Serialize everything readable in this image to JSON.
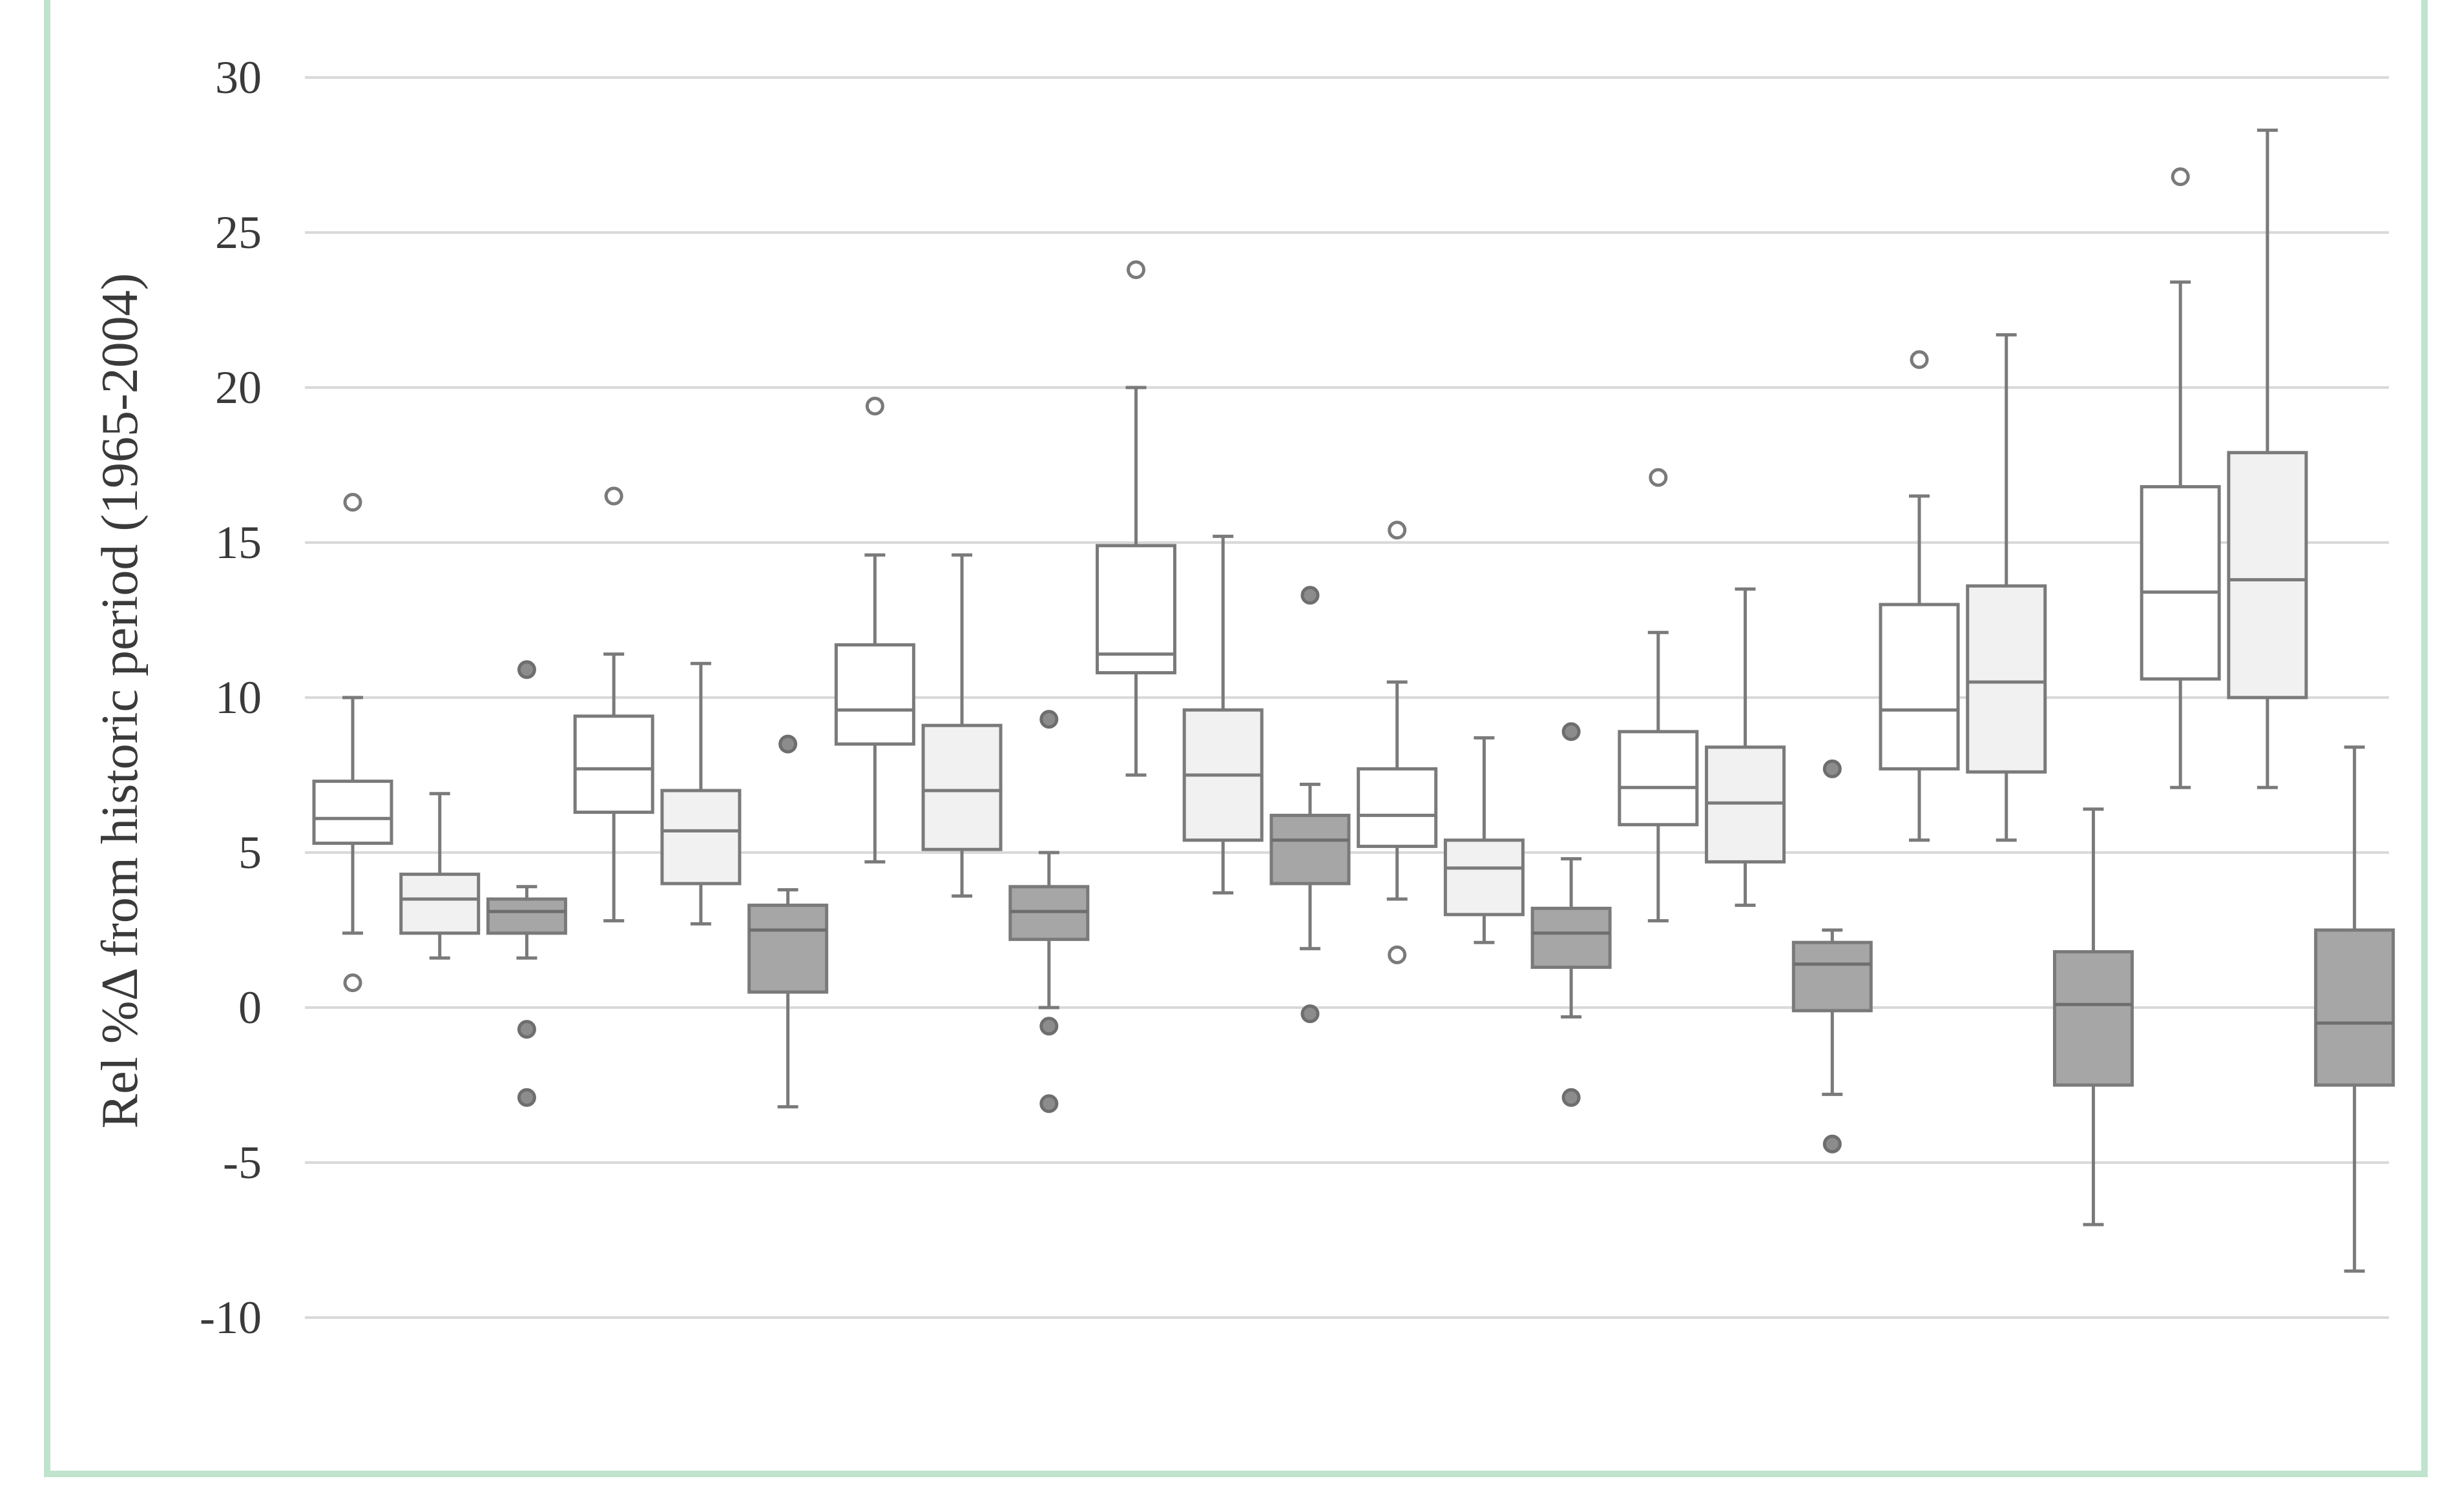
{
  "chart_data": {
    "type": "boxplot",
    "ylabel": "Rel %Δ from historic period (1965-2004)",
    "ylim": [
      -10,
      30
    ],
    "yticks": [
      30,
      25,
      20,
      15,
      10,
      5,
      0,
      -5,
      -10
    ],
    "grid": true,
    "colors": {
      "white": "#ffffff",
      "light": "#f1f1f1",
      "dark": "#a6a6a6",
      "stroke": "#7a7a7a",
      "grid": "#d9d9d9",
      "frame": "#bfe3cc"
    },
    "boxes": [
      {
        "fill": "white",
        "whisker_low": 2.4,
        "q1": 5.3,
        "median": 6.1,
        "q3": 7.3,
        "whisker_high": 10.0,
        "outliers": [
          16.3,
          0.8
        ]
      },
      {
        "fill": "light",
        "whisker_low": 1.6,
        "q1": 2.4,
        "median": 3.5,
        "q3": 4.3,
        "whisker_high": 6.9,
        "outliers": []
      },
      {
        "fill": "dark",
        "whisker_low": 1.6,
        "q1": 2.4,
        "median": 3.1,
        "q3": 3.5,
        "whisker_high": 3.9,
        "outliers": [
          10.9,
          -0.7,
          -2.9
        ]
      },
      {
        "fill": "white",
        "whisker_low": 2.8,
        "q1": 6.3,
        "median": 7.7,
        "q3": 9.4,
        "whisker_high": 11.4,
        "outliers": [
          16.5
        ]
      },
      {
        "fill": "light",
        "whisker_low": 2.7,
        "q1": 4.0,
        "median": 5.7,
        "q3": 7.0,
        "whisker_high": 11.1,
        "outliers": []
      },
      {
        "fill": "dark",
        "whisker_low": -3.2,
        "q1": 0.5,
        "median": 2.5,
        "q3": 3.3,
        "whisker_high": 3.8,
        "outliers": [
          8.5
        ]
      },
      {
        "fill": "white",
        "whisker_low": 4.7,
        "q1": 8.5,
        "median": 9.6,
        "q3": 11.7,
        "whisker_high": 14.6,
        "outliers": [
          19.4
        ]
      },
      {
        "fill": "light",
        "whisker_low": 3.6,
        "q1": 5.1,
        "median": 7.0,
        "q3": 9.1,
        "whisker_high": 14.6,
        "outliers": []
      },
      {
        "fill": "dark",
        "whisker_low": 0.0,
        "q1": 2.2,
        "median": 3.1,
        "q3": 3.9,
        "whisker_high": 5.0,
        "outliers": [
          9.3,
          -0.6,
          -3.1
        ]
      },
      {
        "fill": "white",
        "whisker_low": 7.5,
        "q1": 10.8,
        "median": 11.4,
        "q3": 14.9,
        "whisker_high": 20.0,
        "outliers": [
          23.8
        ]
      },
      {
        "fill": "light",
        "whisker_low": 3.7,
        "q1": 5.4,
        "median": 7.5,
        "q3": 9.6,
        "whisker_high": 15.2,
        "outliers": []
      },
      {
        "fill": "dark",
        "whisker_low": 1.9,
        "q1": 4.0,
        "median": 5.4,
        "q3": 6.2,
        "whisker_high": 7.2,
        "outliers": [
          13.3,
          -0.2
        ]
      },
      {
        "fill": "white",
        "whisker_low": 3.5,
        "q1": 5.2,
        "median": 6.2,
        "q3": 7.7,
        "whisker_high": 10.5,
        "outliers": [
          15.4,
          1.7
        ]
      },
      {
        "fill": "light",
        "whisker_low": 2.1,
        "q1": 3.0,
        "median": 4.5,
        "q3": 5.4,
        "whisker_high": 8.7,
        "outliers": []
      },
      {
        "fill": "dark",
        "whisker_low": -0.3,
        "q1": 1.3,
        "median": 2.4,
        "q3": 3.2,
        "whisker_high": 4.8,
        "outliers": [
          8.9,
          -2.9
        ]
      },
      {
        "fill": "white",
        "whisker_low": 2.8,
        "q1": 5.9,
        "median": 7.1,
        "q3": 8.9,
        "whisker_high": 12.1,
        "outliers": [
          17.1
        ]
      },
      {
        "fill": "light",
        "whisker_low": 3.3,
        "q1": 4.7,
        "median": 6.6,
        "q3": 8.4,
        "whisker_high": 13.5,
        "outliers": []
      },
      {
        "fill": "dark",
        "whisker_low": -2.8,
        "q1": -0.1,
        "median": 1.4,
        "q3": 2.1,
        "whisker_high": 2.5,
        "outliers": [
          7.7,
          -4.4
        ]
      },
      {
        "fill": "white",
        "whisker_low": 5.4,
        "q1": 7.7,
        "median": 9.6,
        "q3": 13.0,
        "whisker_high": 16.5,
        "outliers": [
          20.9
        ]
      },
      {
        "fill": "light",
        "whisker_low": 5.4,
        "q1": 7.6,
        "median": 10.5,
        "q3": 13.6,
        "whisker_high": 21.7,
        "outliers": []
      },
      {
        "fill": "dark",
        "whisker_low": -7.0,
        "q1": -2.5,
        "median": 0.1,
        "q3": 1.8,
        "whisker_high": 6.4,
        "outliers": []
      },
      {
        "fill": "white",
        "whisker_low": 7.1,
        "q1": 10.6,
        "median": 13.4,
        "q3": 16.8,
        "whisker_high": 23.4,
        "outliers": [
          26.8
        ]
      },
      {
        "fill": "light",
        "whisker_low": 7.1,
        "q1": 10.0,
        "median": 13.8,
        "q3": 17.9,
        "whisker_high": 28.3,
        "outliers": []
      },
      {
        "fill": "dark",
        "whisker_low": -8.5,
        "q1": -2.5,
        "median": -0.5,
        "q3": 2.5,
        "whisker_high": 8.4,
        "outliers": []
      }
    ]
  }
}
